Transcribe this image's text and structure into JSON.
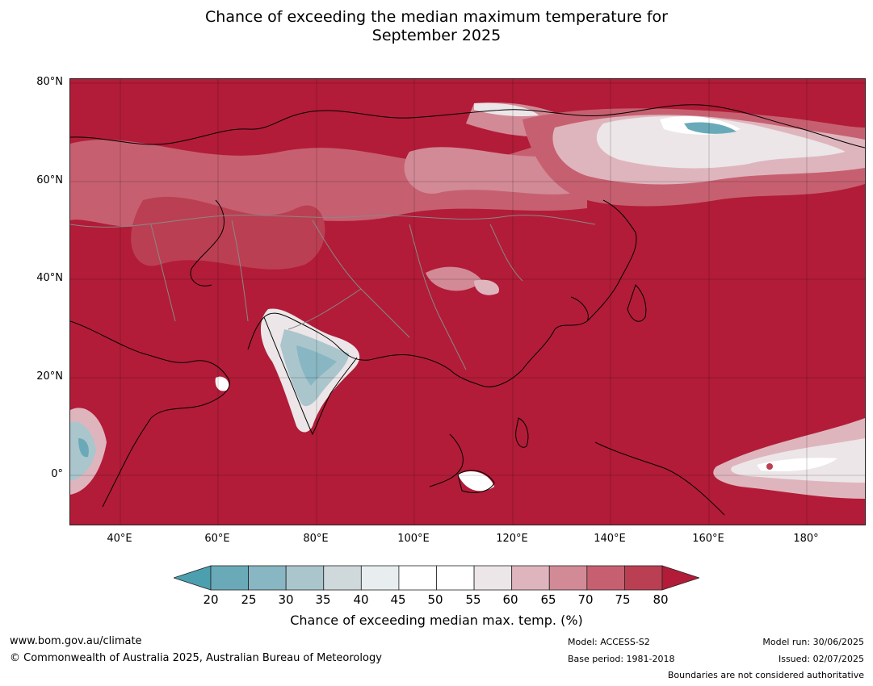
{
  "title_line1": "Chance of exceeding the median maximum temperature for",
  "title_line2": "September 2025",
  "map": {
    "lat_labels": [
      "80°N",
      "60°N",
      "40°N",
      "20°N",
      "0°"
    ],
    "lon_labels": [
      "40°E",
      "60°E",
      "80°E",
      "100°E",
      "120°E",
      "140°E",
      "160°E",
      "180°"
    ],
    "ocean_color": "#b21c38"
  },
  "colorbar": {
    "ticks": [
      "20",
      "25",
      "30",
      "35",
      "40",
      "45",
      "50",
      "55",
      "60",
      "65",
      "70",
      "75",
      "80"
    ],
    "colors": [
      "#6aaab8",
      "#88b6c2",
      "#aac6cc",
      "#cfd8db",
      "#e8eeef",
      "#ffffff",
      "#ffffff",
      "#ece6e8",
      "#dfb5bd",
      "#d28a96",
      "#c66070",
      "#bb3f52"
    ],
    "low_extend_color": "#4c9faf",
    "high_extend_color": "#b21c38",
    "label": "Chance of exceeding median max. temp. (%)"
  },
  "footer": {
    "url": "www.bom.gov.au/climate",
    "copyright": "© Commonwealth of Australia 2025, Australian Bureau of Meteorology",
    "model": "Model: ACCESS-S2",
    "base_period": "Base period: 1981-2018",
    "model_run": "Model run: 30/06/2025",
    "issued": "Issued: 02/07/2025",
    "disclaimer": "Boundaries are not considered authoritative"
  }
}
